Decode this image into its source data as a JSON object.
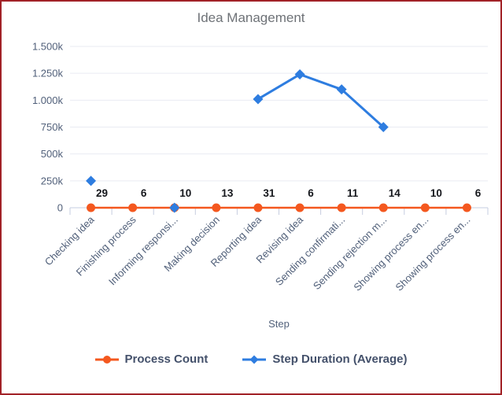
{
  "chart_data": {
    "type": "line",
    "title": "Idea Management",
    "xlabel": "Step",
    "categories": [
      "Checking idea",
      "Finishing process",
      "Informing responsi...",
      "Making decision",
      "Reporting idea",
      "Revising idea",
      "Sending confirmati...",
      "Sending rejection m...",
      "Showing process en...",
      "Showing process en..."
    ],
    "series": [
      {
        "name": "Process Count",
        "color": "#f4581f",
        "marker": "circle",
        "show_value_labels": true,
        "values": [
          29,
          6,
          10,
          13,
          31,
          6,
          11,
          14,
          10,
          6
        ]
      },
      {
        "name": "Step Duration (Average)",
        "color": "#2e7de0",
        "marker": "diamond",
        "show_value_labels": false,
        "values": [
          250000,
          null,
          0,
          null,
          1010000,
          1240000,
          1100000,
          750000,
          null,
          null
        ]
      }
    ],
    "ylim": [
      0,
      1500000
    ],
    "y_ticks": [
      {
        "value": 0,
        "label": "0"
      },
      {
        "value": 250000,
        "label": "250k"
      },
      {
        "value": 500000,
        "label": "500k"
      },
      {
        "value": 750000,
        "label": "750k"
      },
      {
        "value": 1000000,
        "label": "1.000k"
      },
      {
        "value": 1250000,
        "label": "1.250k"
      },
      {
        "value": 1500000,
        "label": "1.500k"
      }
    ],
    "grid": "horizontal",
    "legend_position": "bottom"
  },
  "styles": {
    "border_color": "#a12227",
    "background": "#ffffff",
    "title_color": "#6e7277",
    "axis_label_color": "#51607a",
    "value_label_color": "#15171c",
    "legend_text_color": "#44516b",
    "grid_color": "#e9ebf2",
    "axis_line_color": "#c6cde0",
    "accent_orange": "#f4581f",
    "accent_blue": "#2e7de0"
  }
}
